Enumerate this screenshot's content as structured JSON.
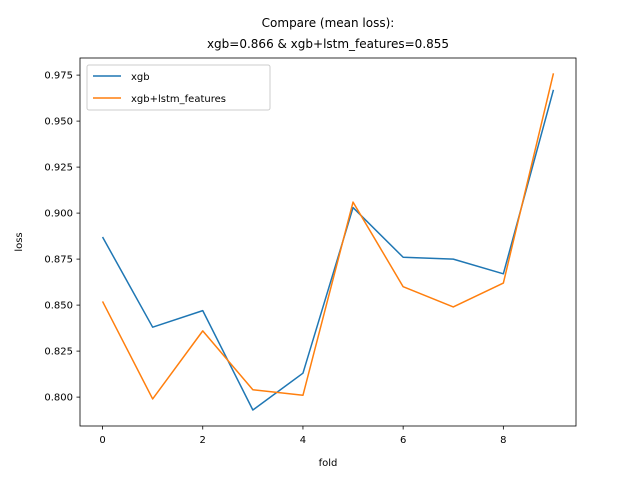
{
  "chart_data": {
    "type": "line",
    "title_line1": "Compare (mean loss):",
    "title_line2": "xgb=0.866 & xgb+lstm_features=0.855",
    "xlabel": "fold",
    "ylabel": "loss",
    "xlim": [
      -0.45,
      9.45
    ],
    "ylim": [
      0.7843,
      0.9843
    ],
    "xticks": [
      0,
      2,
      4,
      6,
      8
    ],
    "xtick_labels": [
      "0",
      "2",
      "4",
      "6",
      "8"
    ],
    "yticks": [
      0.8,
      0.825,
      0.85,
      0.875,
      0.9,
      0.925,
      0.95,
      0.975
    ],
    "ytick_labels": [
      "0.800",
      "0.825",
      "0.850",
      "0.875",
      "0.900",
      "0.925",
      "0.950",
      "0.975"
    ],
    "grid": false,
    "legend_position": "top-left",
    "x": [
      0,
      1,
      2,
      3,
      4,
      5,
      6,
      7,
      8,
      9
    ],
    "series": [
      {
        "name": "xgb",
        "color": "#1f77b4",
        "values": [
          0.887,
          0.838,
          0.847,
          0.793,
          0.813,
          0.903,
          0.876,
          0.875,
          0.867,
          0.967
        ]
      },
      {
        "name": "xgb+lstm_features",
        "color": "#ff7f0e",
        "values": [
          0.852,
          0.799,
          0.836,
          0.804,
          0.801,
          0.906,
          0.86,
          0.849,
          0.862,
          0.976
        ]
      }
    ]
  }
}
